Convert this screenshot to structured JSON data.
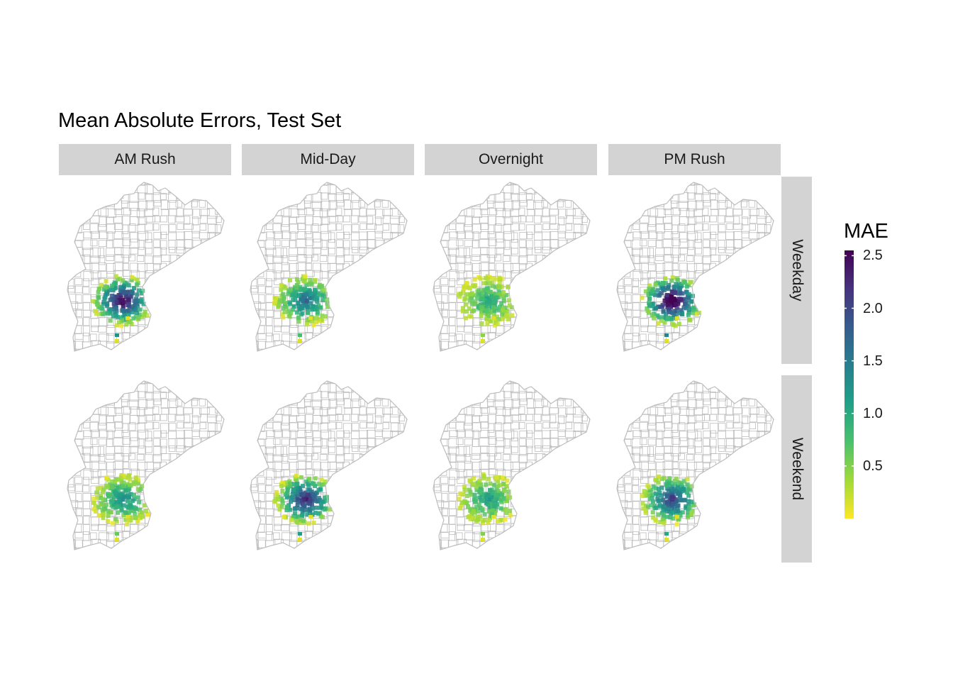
{
  "title": "Mean Absolute Errors, Test Set",
  "columns": [
    "AM Rush",
    "Mid-Day",
    "Overnight",
    "PM Rush"
  ],
  "rows": [
    "Weekday",
    "Weekend"
  ],
  "legend": {
    "title": "MAE",
    "min": 0.0,
    "max": 2.55,
    "ticks": [
      "2.5",
      "2.0",
      "1.5",
      "1.0",
      "0.5"
    ],
    "tick_values": [
      2.5,
      2.0,
      1.5,
      1.0,
      0.5
    ],
    "colors": [
      "#fde725",
      "#a0da39",
      "#4ac16d",
      "#1fa187",
      "#277f8e",
      "#365c8d",
      "#46327e",
      "#440154"
    ]
  },
  "map": {
    "outline_color": "#bdbdbd",
    "panel_intensity": [
      [
        0.62,
        0.38,
        0.22,
        0.7
      ],
      [
        0.3,
        0.55,
        0.25,
        0.5
      ]
    ]
  }
}
